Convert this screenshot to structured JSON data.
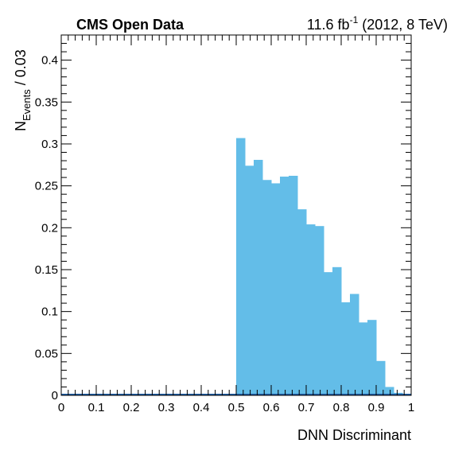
{
  "header": {
    "experiment": "CMS Open Data",
    "lumi_value": "11.6 fb",
    "lumi_exponent": "-1",
    "lumi_suffix": " (2012, 8 TeV)"
  },
  "chart_data": {
    "type": "bar",
    "style": "histogram",
    "xlabel": "DNN Discriminant",
    "ylabel_main": "N",
    "ylabel_subscript": "Events",
    "ylabel_suffix": " / 0.03",
    "xlim": [
      0,
      1
    ],
    "ylim": [
      0,
      0.43
    ],
    "bin_width": 0.025,
    "x_ticks": [
      0,
      0.1,
      0.2,
      0.3,
      0.4,
      0.5,
      0.6,
      0.7,
      0.8,
      0.9,
      1
    ],
    "x_tick_labels": [
      "0",
      "0.1",
      "0.2",
      "0.3",
      "0.4",
      "0.5",
      "0.6",
      "0.7",
      "0.8",
      "0.9",
      "1"
    ],
    "y_ticks": [
      0,
      0.05,
      0.1,
      0.15,
      0.2,
      0.25,
      0.3,
      0.35,
      0.4
    ],
    "y_tick_labels": [
      "0",
      "0.05",
      "0.1",
      "0.15",
      "0.2",
      "0.25",
      "0.3",
      "0.35",
      "0.4"
    ],
    "fill_color": "#63bde8",
    "baseline_color": "#1f5fa8",
    "bins": [
      {
        "x0": 0.5,
        "value": 0.307
      },
      {
        "x0": 0.525,
        "value": 0.274
      },
      {
        "x0": 0.55,
        "value": 0.281
      },
      {
        "x0": 0.575,
        "value": 0.257
      },
      {
        "x0": 0.6,
        "value": 0.253
      },
      {
        "x0": 0.625,
        "value": 0.261
      },
      {
        "x0": 0.65,
        "value": 0.262
      },
      {
        "x0": 0.675,
        "value": 0.222
      },
      {
        "x0": 0.7,
        "value": 0.204
      },
      {
        "x0": 0.725,
        "value": 0.202
      },
      {
        "x0": 0.75,
        "value": 0.147
      },
      {
        "x0": 0.775,
        "value": 0.153
      },
      {
        "x0": 0.8,
        "value": 0.111
      },
      {
        "x0": 0.825,
        "value": 0.121
      },
      {
        "x0": 0.85,
        "value": 0.087
      },
      {
        "x0": 0.875,
        "value": 0.09
      },
      {
        "x0": 0.9,
        "value": 0.041
      },
      {
        "x0": 0.925,
        "value": 0.01
      },
      {
        "x0": 0.95,
        "value": 0.003
      }
    ]
  }
}
